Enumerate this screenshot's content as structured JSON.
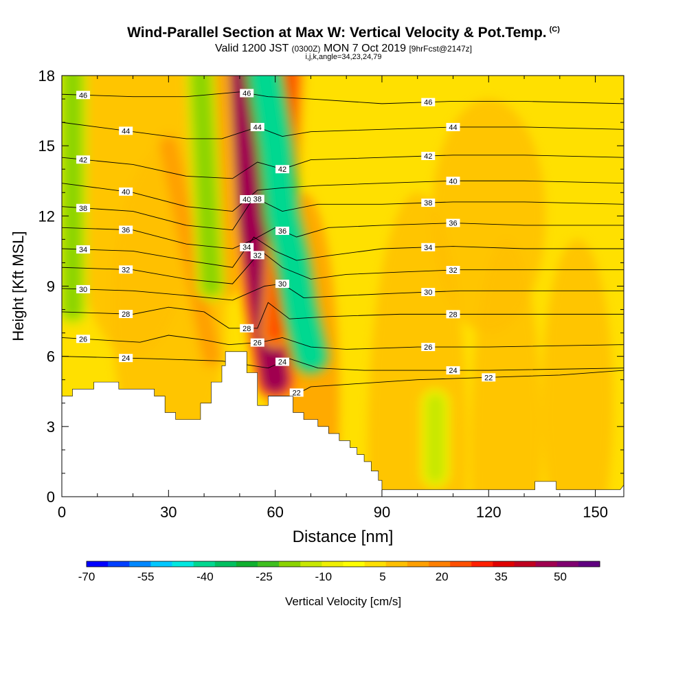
{
  "title": {
    "main": "Wind-Parallel Section at Max W: Vertical Velocity & Pot.Temp.",
    "copyright": "(C)",
    "valid_prefix": "Valid 1200 JST",
    "valid_utc": "(0300Z)",
    "valid_date": "MON 7 Oct 2019",
    "forecast": "[9hrFcst@2147z]",
    "indices": "i,j,k,angle=34,23,24,79"
  },
  "chart_data": {
    "type": "heatmap",
    "xlabel": "Distance [nm]",
    "ylabel": "Height [Kft MSL]",
    "xlim": [
      0,
      158
    ],
    "ylim": [
      0,
      18
    ],
    "x_ticks": [
      "0",
      "30",
      "60",
      "90",
      "120",
      "150"
    ],
    "y_ticks": [
      "0",
      "3",
      "6",
      "9",
      "12",
      "15",
      "18"
    ],
    "colorbar": {
      "label": "Vertical Velocity [cm/s]",
      "tick_labels": [
        "-70",
        "-55",
        "-40",
        "-25",
        "-10",
        "5",
        "20",
        "35",
        "50"
      ],
      "tick_values": [
        -70,
        -55,
        -40,
        -25,
        -10,
        5,
        20,
        35,
        50
      ],
      "colors": [
        "#0000ff",
        "#0040ff",
        "#0088ff",
        "#00c8ff",
        "#00e8e0",
        "#00d890",
        "#00c060",
        "#10b030",
        "#40c020",
        "#8cd400",
        "#c8e800",
        "#f0f000",
        "#ffff00",
        "#ffe000",
        "#ffc000",
        "#ffa000",
        "#ff8000",
        "#ff5000",
        "#ff2000",
        "#e00000",
        "#c00020",
        "#a00050",
        "#800070",
        "#600080"
      ]
    },
    "terrain_kft": [
      [
        0,
        4.3
      ],
      [
        3,
        4.3
      ],
      [
        3,
        4.6
      ],
      [
        9,
        4.6
      ],
      [
        9,
        4.9
      ],
      [
        16,
        4.9
      ],
      [
        16,
        4.6
      ],
      [
        26,
        4.6
      ],
      [
        26,
        4.3
      ],
      [
        29,
        4.3
      ],
      [
        29,
        3.6
      ],
      [
        32,
        3.6
      ],
      [
        32,
        3.3
      ],
      [
        39,
        3.3
      ],
      [
        39,
        4.0
      ],
      [
        42,
        4.0
      ],
      [
        42,
        4.9
      ],
      [
        45,
        4.9
      ],
      [
        45,
        5.6
      ],
      [
        46,
        5.6
      ],
      [
        46,
        6.2
      ],
      [
        52,
        6.2
      ],
      [
        52,
        5.3
      ],
      [
        55,
        5.3
      ],
      [
        55,
        3.9
      ],
      [
        58,
        3.9
      ],
      [
        58,
        4.3
      ],
      [
        65,
        4.3
      ],
      [
        65,
        3.6
      ],
      [
        68,
        3.6
      ],
      [
        68,
        3.3
      ],
      [
        72,
        3.3
      ],
      [
        72,
        3.0
      ],
      [
        75,
        3.0
      ],
      [
        75,
        2.7
      ],
      [
        78,
        2.7
      ],
      [
        78,
        2.4
      ],
      [
        81,
        2.4
      ],
      [
        81,
        2.1
      ],
      [
        83,
        2.1
      ],
      [
        83,
        1.8
      ],
      [
        85,
        1.8
      ],
      [
        85,
        1.5
      ],
      [
        87,
        1.5
      ],
      [
        87,
        1.1
      ],
      [
        89,
        1.1
      ],
      [
        89,
        0.7
      ],
      [
        90,
        0.7
      ],
      [
        90,
        0.3
      ],
      [
        133,
        0.3
      ],
      [
        133,
        0.65
      ],
      [
        139,
        0.65
      ],
      [
        139,
        0.3
      ],
      [
        157,
        0.3
      ],
      [
        158,
        0.5
      ]
    ],
    "updraft_bands": [
      {
        "x": [
          49,
          51,
          53,
          55,
          57,
          60
        ],
        "y": [
          18,
          15,
          12,
          10,
          8,
          5
        ],
        "w_cm_s": 45
      },
      {
        "x": [
          64,
          63,
          62,
          61,
          60
        ],
        "y": [
          18,
          15,
          12,
          9,
          7
        ],
        "w_cm_s": 25
      },
      {
        "x": [
          43,
          44,
          45,
          46
        ],
        "y": [
          18,
          15,
          12,
          9
        ],
        "w_cm_s": 15
      },
      {
        "x": [
          30,
          34,
          38,
          42
        ],
        "y": [
          15,
          12,
          9,
          6
        ],
        "w_cm_s": 12
      }
    ],
    "downdraft_bands": [
      {
        "x": [
          57,
          60,
          62,
          65,
          67,
          70
        ],
        "y": [
          18,
          15,
          12,
          10,
          8,
          6
        ],
        "w_cm_s": -40
      },
      {
        "x": [
          3,
          3,
          3,
          3
        ],
        "y": [
          18,
          15,
          12,
          8
        ],
        "w_cm_s": -20
      },
      {
        "x": [
          39,
          40,
          41,
          42
        ],
        "y": [
          18,
          15,
          12,
          9
        ],
        "w_cm_s": -20
      },
      {
        "x": [
          105,
          105
        ],
        "y": [
          4,
          1
        ],
        "w_cm_s": -12
      }
    ],
    "pot_temp_contours": [
      {
        "label": "46",
        "points": [
          [
            0,
            17.2
          ],
          [
            20,
            17.1
          ],
          [
            35,
            17.1
          ],
          [
            50,
            17.3
          ],
          [
            58,
            17.1
          ],
          [
            70,
            17.0
          ],
          [
            90,
            16.8
          ],
          [
            110,
            16.9
          ],
          [
            130,
            16.9
          ],
          [
            158,
            16.8
          ]
        ]
      },
      {
        "label": "44",
        "points": [
          [
            0,
            16.0
          ],
          [
            20,
            15.6
          ],
          [
            35,
            15.3
          ],
          [
            45,
            15.3
          ],
          [
            55,
            15.8
          ],
          [
            62,
            15.4
          ],
          [
            70,
            15.6
          ],
          [
            90,
            15.7
          ],
          [
            110,
            15.8
          ],
          [
            130,
            15.8
          ],
          [
            158,
            15.7
          ]
        ]
      },
      {
        "label": "42",
        "points": [
          [
            0,
            14.5
          ],
          [
            20,
            14.2
          ],
          [
            35,
            13.7
          ],
          [
            48,
            13.6
          ],
          [
            55,
            14.3
          ],
          [
            62,
            14.0
          ],
          [
            70,
            14.4
          ],
          [
            90,
            14.5
          ],
          [
            110,
            14.6
          ],
          [
            130,
            14.6
          ],
          [
            158,
            14.5
          ]
        ]
      },
      {
        "label": "40",
        "points": [
          [
            0,
            13.4
          ],
          [
            20,
            13.0
          ],
          [
            35,
            12.4
          ],
          [
            48,
            12.2
          ],
          [
            55,
            13.1
          ],
          [
            62,
            13.2
          ],
          [
            72,
            13.3
          ],
          [
            90,
            13.4
          ],
          [
            110,
            13.5
          ],
          [
            130,
            13.5
          ],
          [
            158,
            13.4
          ]
        ]
      },
      {
        "label": "38",
        "points": [
          [
            0,
            12.4
          ],
          [
            20,
            12.2
          ],
          [
            35,
            11.6
          ],
          [
            48,
            11.4
          ],
          [
            54,
            12.8
          ],
          [
            62,
            12.2
          ],
          [
            72,
            12.5
          ],
          [
            90,
            12.5
          ],
          [
            110,
            12.6
          ],
          [
            130,
            12.6
          ],
          [
            158,
            12.5
          ]
        ]
      },
      {
        "label": "36",
        "points": [
          [
            0,
            11.5
          ],
          [
            20,
            11.4
          ],
          [
            35,
            10.8
          ],
          [
            48,
            10.6
          ],
          [
            54,
            11.0
          ],
          [
            60,
            11.5
          ],
          [
            66,
            11.1
          ],
          [
            75,
            11.5
          ],
          [
            90,
            11.6
          ],
          [
            110,
            11.7
          ],
          [
            130,
            11.6
          ],
          [
            158,
            11.6
          ]
        ]
      },
      {
        "label": "34",
        "points": [
          [
            0,
            10.6
          ],
          [
            20,
            10.5
          ],
          [
            35,
            10.1
          ],
          [
            48,
            9.8
          ],
          [
            54,
            11.1
          ],
          [
            60,
            10.5
          ],
          [
            66,
            10.1
          ],
          [
            75,
            10.3
          ],
          [
            90,
            10.6
          ],
          [
            110,
            10.7
          ],
          [
            130,
            10.6
          ],
          [
            158,
            10.6
          ]
        ]
      },
      {
        "label": "32",
        "points": [
          [
            0,
            9.8
          ],
          [
            20,
            9.7
          ],
          [
            35,
            9.3
          ],
          [
            48,
            9.1
          ],
          [
            56,
            10.5
          ],
          [
            62,
            9.8
          ],
          [
            70,
            9.3
          ],
          [
            80,
            9.5
          ],
          [
            95,
            9.6
          ],
          [
            112,
            9.7
          ],
          [
            130,
            9.7
          ],
          [
            158,
            9.7
          ]
        ]
      },
      {
        "label": "30",
        "points": [
          [
            0,
            8.9
          ],
          [
            20,
            8.8
          ],
          [
            35,
            8.6
          ],
          [
            48,
            8.4
          ],
          [
            57,
            9.0
          ],
          [
            62,
            9.1
          ],
          [
            68,
            8.5
          ],
          [
            80,
            8.6
          ],
          [
            95,
            8.7
          ],
          [
            112,
            8.8
          ],
          [
            130,
            8.8
          ],
          [
            158,
            8.8
          ]
        ]
      },
      {
        "label": "28",
        "points": [
          [
            0,
            7.9
          ],
          [
            20,
            7.8
          ],
          [
            30,
            8.1
          ],
          [
            40,
            7.9
          ],
          [
            47,
            7.2
          ],
          [
            55,
            7.2
          ],
          [
            58,
            8.3
          ],
          [
            64,
            7.6
          ],
          [
            75,
            7.7
          ],
          [
            95,
            7.8
          ],
          [
            110,
            7.8
          ],
          [
            130,
            7.8
          ],
          [
            158,
            7.8
          ]
        ]
      },
      {
        "label": "26",
        "points": [
          [
            0,
            6.8
          ],
          [
            22,
            6.6
          ],
          [
            30,
            6.9
          ],
          [
            40,
            6.7
          ],
          [
            47,
            6.5
          ],
          [
            56,
            6.6
          ],
          [
            62,
            6.8
          ],
          [
            70,
            6.4
          ],
          [
            80,
            6.3
          ],
          [
            100,
            6.4
          ],
          [
            120,
            6.4
          ],
          [
            158,
            6.5
          ]
        ]
      },
      {
        "label": "24",
        "points": [
          [
            0,
            6.0
          ],
          [
            25,
            5.9
          ],
          [
            45,
            5.8
          ],
          [
            58,
            5.5
          ],
          [
            64,
            5.9
          ],
          [
            72,
            5.5
          ],
          [
            85,
            5.4
          ],
          [
            100,
            5.4
          ],
          [
            120,
            5.4
          ],
          [
            158,
            5.5
          ]
        ]
      },
      {
        "label": "22",
        "points": [
          [
            58,
            4.3
          ],
          [
            65,
            4.3
          ],
          [
            70,
            4.7
          ],
          [
            80,
            4.8
          ],
          [
            100,
            5.0
          ],
          [
            120,
            5.1
          ],
          [
            140,
            5.2
          ],
          [
            158,
            5.4
          ]
        ]
      }
    ]
  }
}
